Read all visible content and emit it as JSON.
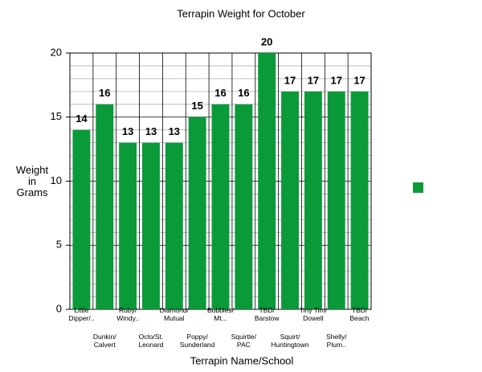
{
  "chart_data": {
    "type": "bar",
    "title": "Terrapin Weight for October",
    "x_label": "Terrapin Name/School",
    "y_label": "Weight\nin\nGrams",
    "categories": [
      "Little\nDipper/..",
      "Dunkin/\nCalvert",
      "Ruby/\nWindy..",
      "Octo/St.\nLeonard",
      "Diamond/\nMutual",
      "Poppy/\nSunderland",
      "Bubbles/\nMt...",
      "Squirtle/\nPAC",
      "TBD/\nBarstow",
      "Squirt/\nHuntingtown",
      "Tiny Tim/\nDowell",
      "Shelly/\nPlum..",
      "TBD/\nBeach"
    ],
    "values": [
      14,
      16,
      13,
      13,
      13,
      15,
      16,
      16,
      20,
      17,
      17,
      17,
      17
    ],
    "color": "#0a9a3a",
    "ylim": [
      0,
      20
    ],
    "yticks": [
      0,
      5,
      10,
      15,
      20
    ],
    "minor_yticks": [
      1,
      2,
      3,
      4,
      6,
      7,
      8,
      9,
      11,
      12,
      13,
      14,
      16,
      17,
      18,
      19
    ],
    "grid": true,
    "legend": "right"
  }
}
